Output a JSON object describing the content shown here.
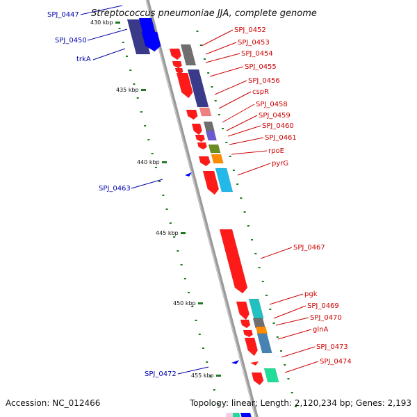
{
  "title": "Streptococcus pneumoniae JJA, complete genome",
  "footer": {
    "accession": "Accession: NC_012466",
    "summary": "Topology: linear; Length: 2,120,234 bp; Genes: 2,193"
  },
  "colors": {
    "backbone": "#9a9a9a",
    "tick": "#1f7a1f",
    "label_right": "#cc0000",
    "label_left": "#0000aa",
    "gene_red": "#ff1a1a",
    "gene_blue": "#0000ff",
    "gene_navy": "#3a3a8a",
    "gene_grey": "#6f6f6f",
    "gene_pink": "#f08080",
    "gene_purple": "#6a5acd",
    "gene_olive": "#6b8e23",
    "gene_orange": "#ff8c00",
    "gene_cyan": "#22b8e8",
    "gene_teal": "#22c0c0",
    "gene_steel": "#4682b4",
    "gene_mint": "#22dd99"
  },
  "ticks": [
    {
      "label": "430 kbp"
    },
    {
      "label": "435 kbp"
    },
    {
      "label": "440 kbp"
    },
    {
      "label": "445 kbp"
    },
    {
      "label": "450 kbp"
    },
    {
      "label": "455 kbp"
    }
  ],
  "genes_right": [
    {
      "label": "SPJ_0452"
    },
    {
      "label": "SPJ_0453"
    },
    {
      "label": "SPJ_0454"
    },
    {
      "label": "SPJ_0455"
    },
    {
      "label": "SPJ_0456"
    },
    {
      "label": "cspR"
    },
    {
      "label": "SPJ_0458"
    },
    {
      "label": "SPJ_0459"
    },
    {
      "label": "SPJ_0460"
    },
    {
      "label": "SPJ_0461"
    },
    {
      "label": "rpoE"
    },
    {
      "label": "pyrG"
    },
    {
      "label": "SPJ_0467"
    },
    {
      "label": "pgk"
    },
    {
      "label": "SPJ_0469"
    },
    {
      "label": "SPJ_0470"
    },
    {
      "label": "glnA"
    },
    {
      "label": "SPJ_0473"
    },
    {
      "label": "SPJ_0474"
    }
  ],
  "genes_left": [
    {
      "label": "SPJ_0447"
    },
    {
      "label": "SPJ_0450"
    },
    {
      "label": "trkA"
    },
    {
      "label": "SPJ_0463"
    },
    {
      "label": "SPJ_0472"
    }
  ]
}
